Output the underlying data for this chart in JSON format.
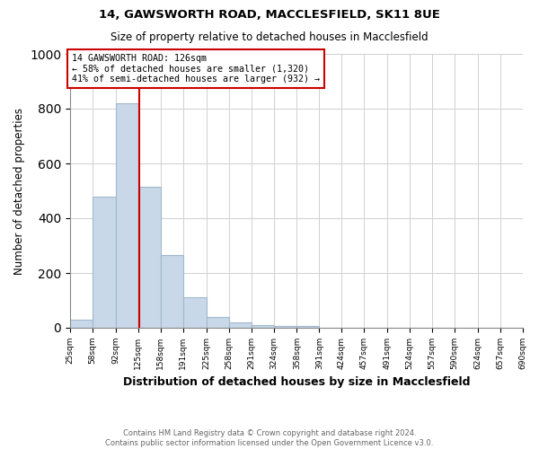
{
  "title1": "14, GAWSWORTH ROAD, MACCLESFIELD, SK11 8UE",
  "title2": "Size of property relative to detached houses in Macclesfield",
  "xlabel": "Distribution of detached houses by size in Macclesfield",
  "ylabel": "Number of detached properties",
  "footnote": "Contains HM Land Registry data © Crown copyright and database right 2024.\nContains public sector information licensed under the Open Government Licence v3.0.",
  "bin_edges": [
    25,
    58,
    92,
    125,
    158,
    191,
    225,
    258,
    291,
    324,
    358,
    391,
    424,
    457,
    491,
    524,
    557,
    590,
    624,
    657,
    690
  ],
  "bar_heights": [
    28,
    478,
    820,
    515,
    265,
    112,
    38,
    20,
    10,
    8,
    8,
    0,
    0,
    0,
    0,
    0,
    0,
    0,
    0,
    0
  ],
  "bar_color": "#c8d8e8",
  "bar_edge_color": "#a0b8cc",
  "vline_x": 126,
  "vline_color": "#cc0000",
  "annotation_text": "14 GAWSWORTH ROAD: 126sqm\n← 58% of detached houses are smaller (1,320)\n41% of semi-detached houses are larger (932) →",
  "annotation_box_color": "#ffffff",
  "annotation_box_edge_color": "#cc0000",
  "ylim": [
    0,
    1000
  ],
  "xlim": [
    25,
    690
  ],
  "tick_labels": [
    "25sqm",
    "58sqm",
    "92sqm",
    "125sqm",
    "158sqm",
    "191sqm",
    "225sqm",
    "258sqm",
    "291sqm",
    "324sqm",
    "358sqm",
    "391sqm",
    "424sqm",
    "457sqm",
    "491sqm",
    "524sqm",
    "557sqm",
    "590sqm",
    "624sqm",
    "657sqm",
    "690sqm"
  ],
  "tick_positions": [
    25,
    58,
    92,
    125,
    158,
    191,
    225,
    258,
    291,
    324,
    358,
    391,
    424,
    457,
    491,
    524,
    557,
    590,
    624,
    657,
    690
  ],
  "bg_color": "#ffffff",
  "grid_color": "#d0d0d0"
}
